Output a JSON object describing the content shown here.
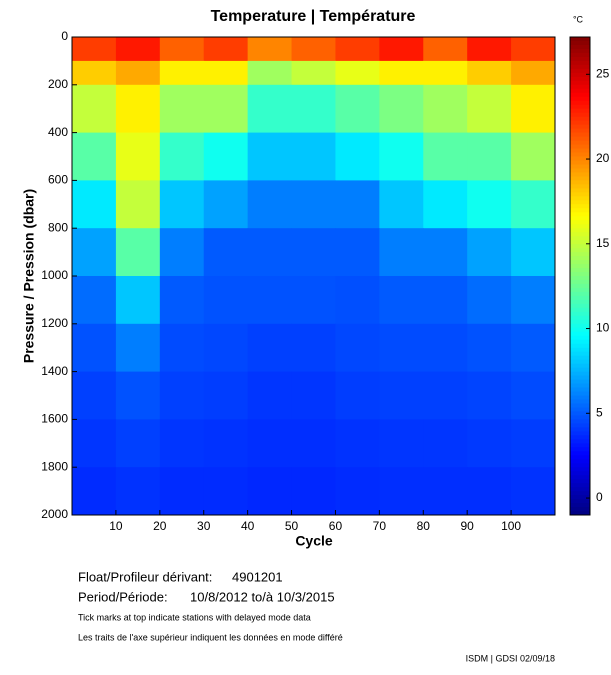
{
  "chart_data": {
    "type": "heatmap",
    "title": "Temperature | Température",
    "x_label": "Cycle",
    "y_label": "Pressure / Pression (dbar)",
    "colorbar_unit": "°C",
    "colormap": "jet",
    "xlim": [
      0,
      110
    ],
    "ylim": [
      2000,
      0
    ],
    "xticks": [
      10,
      20,
      30,
      40,
      50,
      60,
      70,
      80,
      90,
      100
    ],
    "yticks": [
      0,
      200,
      400,
      600,
      800,
      1000,
      1200,
      1400,
      1600,
      1800,
      2000
    ],
    "clim": [
      -1,
      27.2
    ],
    "cticks": [
      0,
      5,
      10,
      15,
      20,
      25
    ],
    "x_edges": [
      0,
      10,
      20,
      30,
      40,
      50,
      60,
      70,
      80,
      90,
      100,
      110
    ],
    "y_edges": [
      0,
      100,
      200,
      400,
      600,
      800,
      1000,
      1200,
      1400,
      1600,
      1800,
      2000
    ],
    "z": [
      [
        22,
        23,
        21,
        22,
        20,
        21,
        22,
        23,
        21,
        23,
        22
      ],
      [
        18,
        19,
        17,
        17,
        14,
        15,
        16,
        17,
        17,
        18,
        19
      ],
      [
        15,
        17,
        14,
        14,
        11,
        11,
        12,
        13,
        14,
        15,
        17
      ],
      [
        12,
        16,
        11,
        10,
        8,
        8,
        9,
        10,
        12,
        12,
        14
      ],
      [
        9,
        15,
        8,
        7,
        6,
        6,
        6,
        8,
        9,
        10,
        11
      ],
      [
        7,
        12,
        6,
        5,
        5,
        5,
        5,
        6,
        6,
        7,
        8
      ],
      [
        5.5,
        8,
        5,
        4.8,
        4.8,
        4.8,
        4.7,
        5,
        5,
        5.5,
        6
      ],
      [
        4.8,
        6,
        4.6,
        4.5,
        4.3,
        4.3,
        4.5,
        4.6,
        4.6,
        4.8,
        5
      ],
      [
        4.3,
        4.8,
        4.3,
        4.2,
        4,
        4,
        4.2,
        4.3,
        4.3,
        4.4,
        4.6
      ],
      [
        4,
        4.3,
        4,
        3.9,
        3.8,
        3.8,
        3.9,
        4,
        4,
        4.1,
        4.2
      ],
      [
        3.7,
        3.9,
        3.7,
        3.7,
        3.6,
        3.6,
        3.7,
        3.8,
        3.8,
        3.8,
        3.9
      ]
    ]
  },
  "info": {
    "float_label": "Float/Profileur dérivant:",
    "float_id": "4901201",
    "period_label": "Period/Période:",
    "period": "10/8/2012  to/à  10/3/2015",
    "note_en": "Tick marks at top indicate stations with delayed mode data",
    "note_fr": "Les traits de l'axe supérieur indiquent les données en mode différé",
    "footer": "ISDM | GDSI  02/09/18"
  }
}
